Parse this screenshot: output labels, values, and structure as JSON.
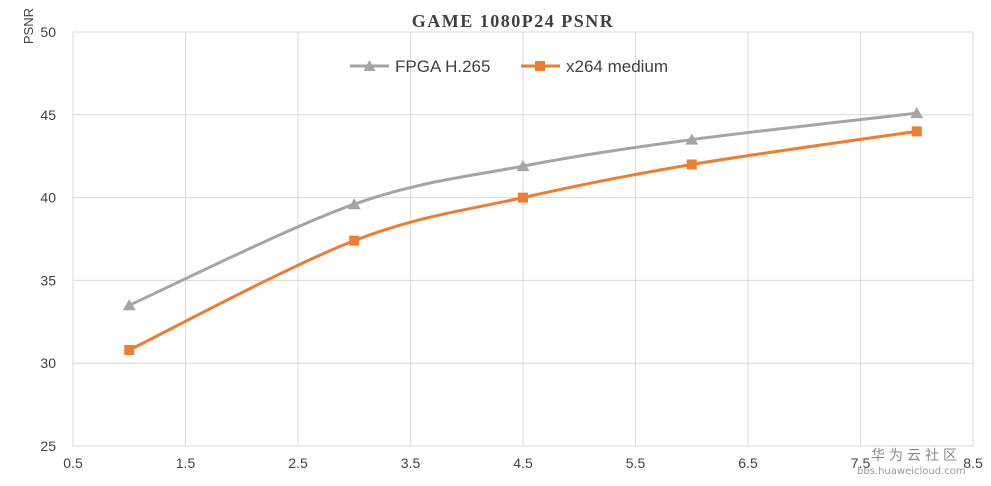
{
  "chart_data": {
    "type": "line",
    "title": "GAME 1080P24 PSNR",
    "ylabel": "PSNR",
    "xlabel": "",
    "xlim": [
      0.5,
      8.5
    ],
    "ylim": [
      25,
      50
    ],
    "x_ticks": [
      "0.5",
      "1.5",
      "2.5",
      "3.5",
      "4.5",
      "5.5",
      "6.5",
      "7.5",
      "8.5"
    ],
    "y_ticks": [
      "25",
      "30",
      "35",
      "40",
      "45",
      "50"
    ],
    "grid": true,
    "legend_position": "top-center",
    "series": [
      {
        "name": "FPGA H.265",
        "color": "#a5a5a5",
        "marker": "triangle",
        "points": [
          [
            1,
            33.5
          ],
          [
            3,
            39.6
          ],
          [
            4.5,
            41.9
          ],
          [
            6,
            43.5
          ],
          [
            8,
            45.1
          ]
        ]
      },
      {
        "name": "x264 medium",
        "color": "#ed7d31",
        "marker": "square",
        "points": [
          [
            1,
            30.8
          ],
          [
            3,
            37.4
          ],
          [
            4.5,
            40.0
          ],
          [
            6,
            42.0
          ],
          [
            8,
            44.0
          ]
        ]
      }
    ]
  },
  "watermark": {
    "text": "华为云社区",
    "url": "bbs.huaweicloud.com"
  }
}
